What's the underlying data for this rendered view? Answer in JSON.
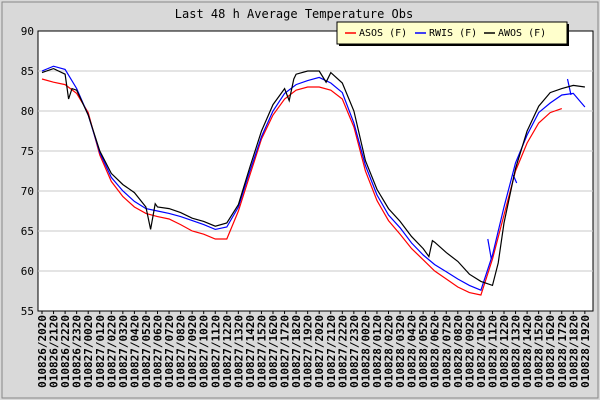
{
  "chart_data": {
    "type": "line",
    "title": "Last 48 h Average Temperature Obs",
    "xlabel": "",
    "ylabel": "",
    "ylim": [
      55,
      90
    ],
    "yticks": [
      55,
      60,
      65,
      70,
      75,
      80,
      85,
      90
    ],
    "grid": true,
    "legend_position": "top-right",
    "x_tick_labels": [
      "010826/2020",
      "010826/2120",
      "010826/2220",
      "010826/2320",
      "010827/0020",
      "010827/0120",
      "010827/0220",
      "010827/0320",
      "010827/0420",
      "010827/0520",
      "010827/0620",
      "010827/0720",
      "010827/0820",
      "010827/0920",
      "010827/1020",
      "010827/1120",
      "010827/1220",
      "010827/1320",
      "010827/1420",
      "010827/1520",
      "010827/1620",
      "010827/1720",
      "010827/1820",
      "010827/1920",
      "010827/2020",
      "010827/2120",
      "010827/2220",
      "010827/2320",
      "010828/0020",
      "010828/0120",
      "010828/0220",
      "010828/0320",
      "010828/0420",
      "010828/0520",
      "010828/0620",
      "010828/0720",
      "010828/0820",
      "010828/0920",
      "010828/1020",
      "010828/1120",
      "010828/1220",
      "010828/1320",
      "010828/1420",
      "010828/1520",
      "010828/1620",
      "010828/1720",
      "010828/1820",
      "010828/1920"
    ],
    "series": [
      {
        "name": "ASOS (F)",
        "color": "#ff0000",
        "segments": [
          [
            [
              0,
              84.0
            ],
            [
              1,
              83.6
            ],
            [
              2,
              83.3
            ],
            [
              3,
              82.2
            ],
            [
              4,
              79.8
            ],
            [
              5,
              74.5
            ],
            [
              6,
              71.2
            ],
            [
              7,
              69.3
            ],
            [
              8,
              68.0
            ],
            [
              9,
              67.2
            ],
            [
              10,
              66.8
            ],
            [
              11,
              66.5
            ],
            [
              12,
              65.8
            ],
            [
              13,
              65.0
            ],
            [
              14,
              64.6
            ],
            [
              15,
              64.0
            ],
            [
              16,
              64.0
            ],
            [
              17,
              67.5
            ],
            [
              18,
              72.0
            ],
            [
              19,
              76.5
            ],
            [
              20,
              79.5
            ],
            [
              21,
              81.5
            ],
            [
              22,
              82.6
            ],
            [
              23,
              83.0
            ],
            [
              24,
              83.0
            ],
            [
              25,
              82.6
            ],
            [
              26,
              81.5
            ],
            [
              27,
              78.0
            ],
            [
              28,
              72.5
            ],
            [
              29,
              68.8
            ],
            [
              30,
              66.3
            ],
            [
              31,
              64.6
            ],
            [
              32,
              62.8
            ],
            [
              33,
              61.4
            ],
            [
              34,
              60.0
            ],
            [
              35,
              59.0
            ],
            [
              36,
              58.0
            ],
            [
              37,
              57.3
            ],
            [
              38,
              57.0
            ],
            [
              39,
              61.5
            ],
            [
              40,
              67.0
            ],
            [
              41,
              72.5
            ],
            [
              42,
              76.0
            ],
            [
              43,
              78.5
            ],
            [
              44,
              79.8
            ],
            [
              45,
              80.3
            ]
          ]
        ]
      },
      {
        "name": "RWIS (F)",
        "color": "#0000ff",
        "segments": [
          [
            [
              0,
              85.0
            ],
            [
              1,
              85.6
            ],
            [
              2,
              85.2
            ],
            [
              3,
              82.8
            ],
            [
              4,
              79.5
            ],
            [
              5,
              74.8
            ],
            [
              6,
              71.7
            ],
            [
              7,
              70.0
            ],
            [
              8,
              68.7
            ],
            [
              9,
              67.8
            ],
            [
              10,
              67.5
            ],
            [
              11,
              67.2
            ],
            [
              12,
              66.8
            ],
            [
              13,
              66.3
            ],
            [
              14,
              65.8
            ],
            [
              15,
              65.2
            ],
            [
              16,
              65.5
            ],
            [
              17,
              68.0
            ],
            [
              18,
              72.5
            ],
            [
              19,
              76.8
            ],
            [
              20,
              80.0
            ],
            [
              21,
              82.2
            ],
            [
              22,
              83.3
            ],
            [
              23,
              83.8
            ],
            [
              24,
              84.2
            ],
            [
              25,
              83.5
            ],
            [
              26,
              82.3
            ],
            [
              27,
              78.5
            ],
            [
              28,
              73.2
            ],
            [
              29,
              69.5
            ],
            [
              30,
              67.0
            ],
            [
              31,
              65.4
            ],
            [
              32,
              63.5
            ],
            [
              33,
              62.0
            ],
            [
              34,
              60.8
            ],
            [
              35,
              59.9
            ],
            [
              36,
              59.0
            ],
            [
              37,
              58.2
            ],
            [
              38,
              57.6
            ],
            [
              39,
              62.0
            ],
            [
              40,
              68.0
            ],
            [
              41,
              73.5
            ],
            [
              42,
              77.0
            ],
            [
              43,
              79.8
            ],
            [
              44,
              81.0
            ],
            [
              45,
              82.0
            ],
            [
              46,
              82.2
            ],
            [
              47,
              80.5
            ]
          ],
          [
            [
              38.6,
              64.0
            ],
            [
              38.9,
              61.5
            ]
          ],
          [
            [
              40.8,
              72.0
            ],
            [
              41.1,
              71.0
            ]
          ],
          [
            [
              45.5,
              84.0
            ],
            [
              45.8,
              82.0
            ]
          ]
        ]
      },
      {
        "name": "AWOS (F)",
        "color": "#000000",
        "segments": [
          [
            [
              0,
              84.8
            ],
            [
              1,
              85.3
            ],
            [
              2,
              84.6
            ],
            [
              2.3,
              81.5
            ],
            [
              2.6,
              82.8
            ],
            [
              3,
              82.6
            ],
            [
              4,
              79.5
            ],
            [
              5,
              75.0
            ],
            [
              6,
              72.2
            ],
            [
              7,
              70.8
            ],
            [
              8,
              69.8
            ],
            [
              9,
              68.0
            ],
            [
              9.4,
              65.2
            ],
            [
              9.8,
              68.4
            ],
            [
              10,
              68.0
            ],
            [
              11,
              67.8
            ],
            [
              12,
              67.3
            ],
            [
              13,
              66.6
            ],
            [
              14,
              66.2
            ],
            [
              15,
              65.6
            ],
            [
              16,
              66.0
            ],
            [
              17,
              68.3
            ],
            [
              18,
              73.0
            ],
            [
              19,
              77.5
            ],
            [
              20,
              80.8
            ],
            [
              21,
              82.8
            ],
            [
              21.4,
              81.3
            ],
            [
              21.8,
              84.0
            ],
            [
              22,
              84.6
            ],
            [
              23,
              85.0
            ],
            [
              24,
              85.0
            ],
            [
              24.6,
              83.6
            ],
            [
              25,
              84.8
            ],
            [
              26,
              83.5
            ],
            [
              27,
              80.0
            ],
            [
              28,
              73.8
            ],
            [
              29,
              70.2
            ],
            [
              30,
              67.8
            ],
            [
              31,
              66.2
            ],
            [
              32,
              64.3
            ],
            [
              33,
              62.8
            ],
            [
              33.5,
              61.8
            ],
            [
              33.8,
              63.8
            ],
            [
              34,
              63.6
            ],
            [
              35,
              62.3
            ],
            [
              36,
              61.2
            ],
            [
              37,
              59.6
            ],
            [
              38,
              58.7
            ],
            [
              39,
              58.2
            ],
            [
              39.5,
              61.0
            ],
            [
              40,
              66.0
            ],
            [
              41,
              72.8
            ],
            [
              42,
              77.5
            ],
            [
              43,
              80.6
            ],
            [
              44,
              82.3
            ],
            [
              45,
              82.8
            ],
            [
              46,
              83.2
            ],
            [
              47,
              83.0
            ]
          ]
        ]
      }
    ]
  }
}
